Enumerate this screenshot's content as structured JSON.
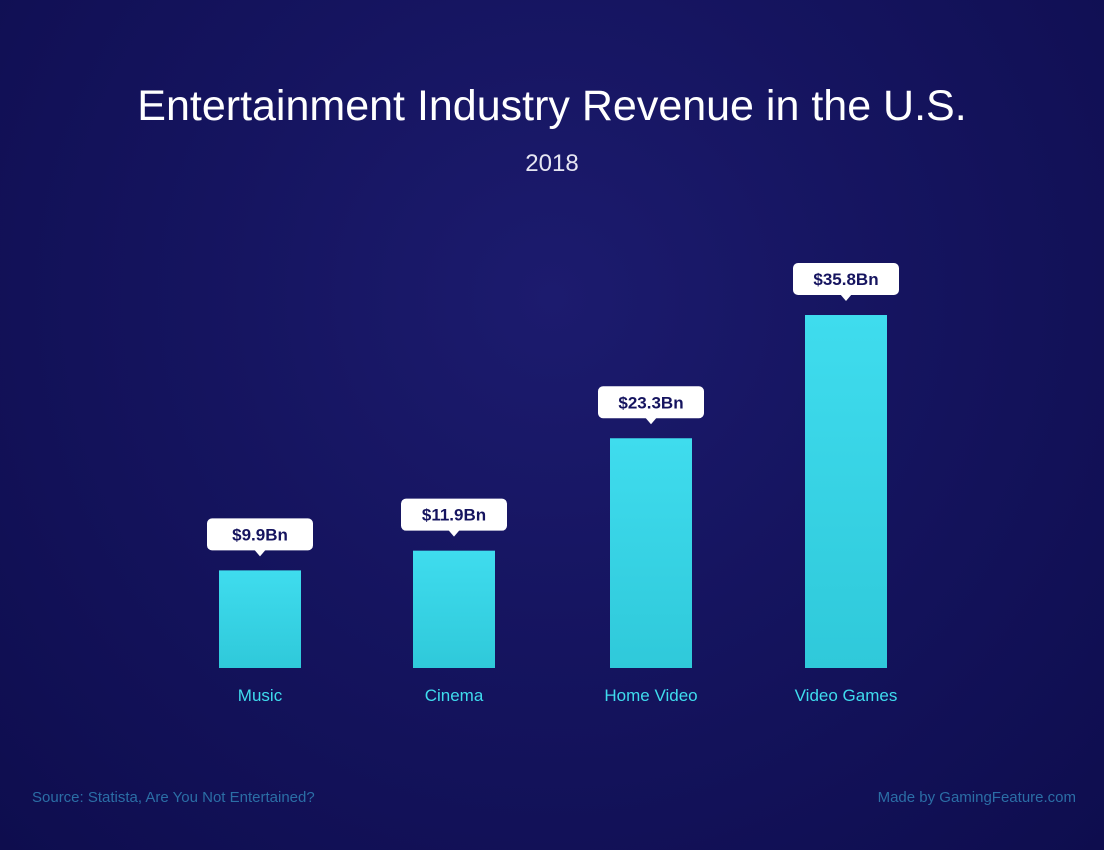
{
  "chart_data": {
    "type": "bar",
    "title": "Entertainment Industry Revenue in the U.S.",
    "subtitle": "2018",
    "categories": [
      "Music",
      "Cinema",
      "Home Video",
      "Video Games"
    ],
    "values": [
      9.9,
      11.9,
      23.3,
      35.8
    ],
    "data_labels": [
      "$9.9Bn",
      "$11.9Bn",
      "$23.3Bn",
      "$35.8Bn"
    ],
    "unit": "Bn USD",
    "grid": false,
    "bar_color": "#3fdcee",
    "label_color": "#3fdcee",
    "background_color": "#15145f"
  },
  "footer": {
    "source": "Source: Statista, Are You Not Entertained?",
    "credit": "Made by GamingFeature.com"
  }
}
